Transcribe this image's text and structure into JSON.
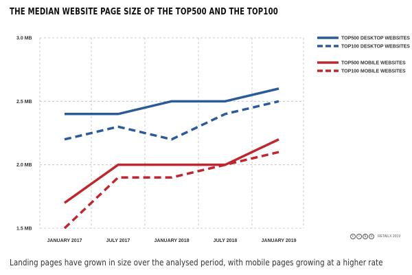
{
  "chart_data": {
    "type": "line",
    "title": "THE MEDIAN WEBSITE PAGE SIZE OF THE TOP500 AND THE TOP100",
    "categories": [
      "JANUARY 2017",
      "JULY 2017",
      "JANUARY 2018",
      "JULY 2018",
      "JANUARY 2019"
    ],
    "y_ticks": [
      "3.0 MB",
      "2.5 MB",
      "2.0 MB",
      "1.5 MB"
    ],
    "y_tick_values": [
      3.0,
      2.5,
      2.0,
      1.5
    ],
    "ylim": [
      1.5,
      3.0
    ],
    "unit": "MB",
    "grid": true,
    "legend_position": "right",
    "series": [
      {
        "name": "TOP500 DESKTOP WEBSITES",
        "values": [
          2.4,
          2.4,
          2.5,
          2.5,
          2.6
        ],
        "color": "#2b5c99",
        "style": "solid"
      },
      {
        "name": "TOP100 DESKTOP WEBSITES",
        "values": [
          2.2,
          2.3,
          2.2,
          2.4,
          2.5
        ],
        "color": "#2b5c99",
        "style": "dashed"
      },
      {
        "name": "TOP500 MOBILE WEBSITES",
        "values": [
          1.7,
          2.0,
          2.0,
          2.0,
          2.2
        ],
        "color": "#c0262d",
        "style": "solid"
      },
      {
        "name": "TOP100 MOBILE WEBSITES",
        "values": [
          1.5,
          1.9,
          1.9,
          2.0,
          2.1
        ],
        "color": "#c0262d",
        "style": "dashed"
      }
    ]
  },
  "credit": {
    "icons": [
      "cc-icon",
      "by-icon",
      "nc-icon",
      "sa-icon"
    ],
    "text": "RETAILX 2019"
  },
  "caption": "Landing pages have grown in size over the analysed period, with mobile pages growing at a higher rate"
}
